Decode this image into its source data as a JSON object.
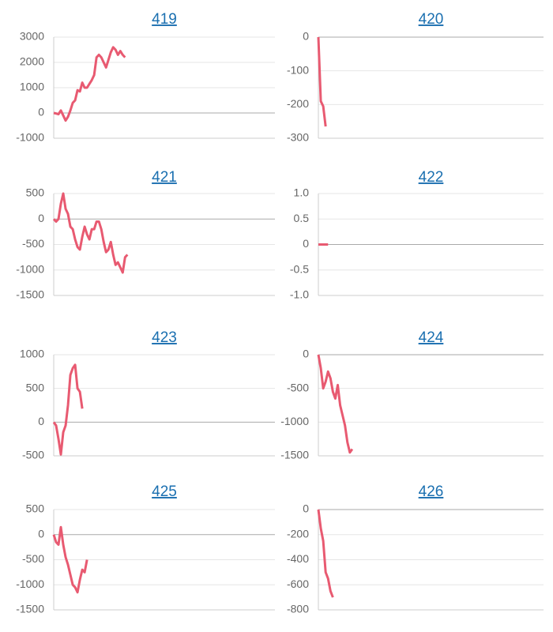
{
  "chart_data": [
    {
      "type": "line",
      "title": "419",
      "color": "#e85a71",
      "xlim": [
        0,
        93
      ],
      "ylim": [
        -1000,
        3000
      ],
      "yticks": [
        3000,
        2000,
        1000,
        0,
        -1000
      ],
      "grid": true,
      "values": [
        0,
        -20,
        -50,
        100,
        -100,
        -300,
        -150,
        100,
        400,
        500,
        900,
        850,
        1200,
        1000,
        1000,
        1150,
        1300,
        1500,
        2200,
        2300,
        2200,
        2000,
        1800,
        2100,
        2400,
        2600,
        2500,
        2300,
        2450,
        2300,
        2200
      ]
    },
    {
      "type": "line",
      "title": "420",
      "color": "#e85a71",
      "xlim": [
        0,
        93
      ],
      "ylim": [
        -300,
        0
      ],
      "yticks": [
        0,
        -100,
        -200,
        -300
      ],
      "grid": true,
      "values": [
        0,
        -190,
        -205,
        -265
      ]
    },
    {
      "type": "line",
      "title": "421",
      "color": "#e85a71",
      "xlim": [
        0,
        93
      ],
      "ylim": [
        -1500,
        500
      ],
      "yticks": [
        500,
        0,
        -500,
        -1000,
        -1500
      ],
      "grid": true,
      "values": [
        0,
        -50,
        0,
        300,
        500,
        200,
        100,
        -150,
        -200,
        -400,
        -550,
        -600,
        -350,
        -150,
        -300,
        -400,
        -200,
        -200,
        -50,
        -50,
        -200,
        -450,
        -650,
        -600,
        -450,
        -700,
        -900,
        -850,
        -950,
        -1050,
        -750,
        -700
      ]
    },
    {
      "type": "line",
      "title": "422",
      "color": "#e85a71",
      "xlim": [
        0,
        93
      ],
      "ylim": [
        -1,
        1
      ],
      "yticks": [
        {
          "value": 1,
          "label": "1.0"
        },
        {
          "value": 0.5,
          "label": "0.5"
        },
        0,
        {
          "value": -0.5,
          "label": "-0.5"
        },
        {
          "value": -1,
          "label": "-1.0"
        }
      ],
      "grid": true,
      "values": [
        0,
        0,
        0,
        0,
        0
      ]
    },
    {
      "type": "line",
      "title": "423",
      "color": "#e85a71",
      "xlim": [
        0,
        93
      ],
      "ylim": [
        -500,
        1000
      ],
      "yticks": [
        1000,
        500,
        0,
        -500
      ],
      "grid": true,
      "values": [
        0,
        -50,
        -250,
        -480,
        -150,
        -50,
        250,
        700,
        800,
        850,
        500,
        450,
        200
      ]
    },
    {
      "type": "line",
      "title": "424",
      "color": "#e85a71",
      "xlim": [
        0,
        93
      ],
      "ylim": [
        -1500,
        0
      ],
      "yticks": [
        0,
        -500,
        -1000,
        -1500
      ],
      "grid": true,
      "values": [
        0,
        -200,
        -500,
        -400,
        -250,
        -350,
        -550,
        -650,
        -450,
        -750,
        -900,
        -1050,
        -1300,
        -1450,
        -1400
      ]
    },
    {
      "type": "line",
      "title": "425",
      "color": "#e85a71",
      "xlim": [
        0,
        93
      ],
      "ylim": [
        -1500,
        500
      ],
      "yticks": [
        500,
        0,
        -500,
        -1000,
        -1500
      ],
      "grid": true,
      "values": [
        0,
        -150,
        -200,
        150,
        -200,
        -450,
        -600,
        -800,
        -1000,
        -1050,
        -1150,
        -900,
        -700,
        -750,
        -500
      ]
    },
    {
      "type": "line",
      "title": "426",
      "color": "#e85a71",
      "xlim": [
        0,
        93
      ],
      "ylim": [
        -800,
        0
      ],
      "yticks": [
        0,
        -200,
        -400,
        -600,
        -800
      ],
      "grid": true,
      "values": [
        0,
        -150,
        -250,
        -500,
        -550,
        -650,
        -700
      ]
    }
  ]
}
